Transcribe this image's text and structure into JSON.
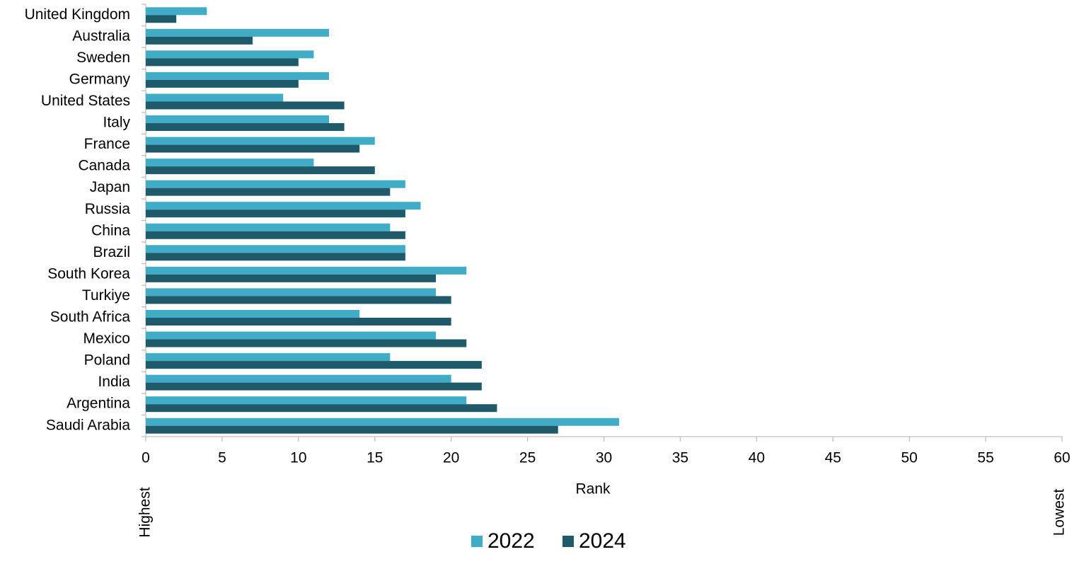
{
  "chart_data": {
    "type": "hbar",
    "x_label": "Rank",
    "annotations": [
      "Highest",
      "Lowest"
    ],
    "categories": [
      "United Kingdom",
      "Australia",
      "Sweden",
      "Germany",
      "United States",
      "Italy",
      "France",
      "Canada",
      "Japan",
      "Russia",
      "China",
      "Brazil",
      "South Korea",
      "Turkiye",
      "South Africa",
      "Mexico",
      "Poland",
      "India",
      "Argentina",
      "Saudi Arabia"
    ],
    "series": [
      {
        "name": "2022",
        "color": "#41acc8",
        "values": [
          4,
          12,
          11,
          12,
          9,
          12,
          15,
          11,
          17,
          18,
          16,
          17,
          21,
          19,
          14,
          19,
          16,
          20,
          21,
          31
        ]
      },
      {
        "name": "2024",
        "color": "#1f5a6a",
        "values": [
          2,
          7,
          10,
          10,
          13,
          13,
          14,
          15,
          16,
          17,
          17,
          17,
          19,
          20,
          20,
          21,
          22,
          22,
          23,
          27
        ]
      }
    ],
    "xlim": [
      0,
      60
    ],
    "xticks": [
      0,
      5,
      10,
      15,
      20,
      25,
      30,
      35,
      40,
      45,
      50,
      55,
      60
    ],
    "legend": "bottom"
  }
}
